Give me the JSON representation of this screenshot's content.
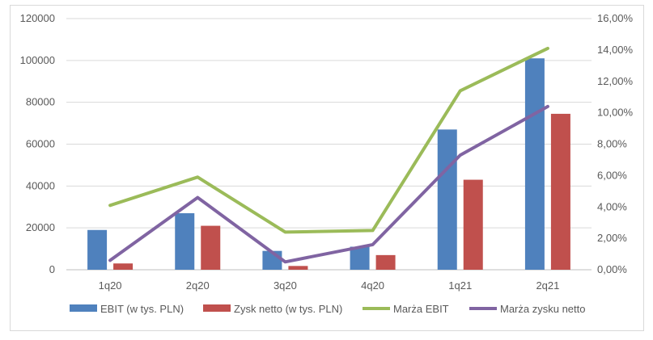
{
  "chart_data": {
    "type": "bar",
    "categories": [
      "1q20",
      "2q20",
      "3q20",
      "4q20",
      "1q21",
      "2q21"
    ],
    "series": [
      {
        "name": "EBIT (w tys. PLN)",
        "kind": "bar",
        "axis": "left",
        "color": "#4F81BD",
        "values": [
          19000,
          27000,
          9000,
          11000,
          67000,
          101000
        ]
      },
      {
        "name": "Zysk netto (w tys. PLN)",
        "kind": "bar",
        "axis": "left",
        "color": "#C0504D",
        "values": [
          3000,
          21000,
          1800,
          7000,
          43000,
          74500
        ]
      },
      {
        "name": "Marża EBIT",
        "kind": "line",
        "axis": "right",
        "color": "#9BBB59",
        "values": [
          0.041,
          0.059,
          0.024,
          0.025,
          0.114,
          0.141
        ]
      },
      {
        "name": "Marża zysku netto",
        "kind": "line",
        "axis": "right",
        "color": "#8064A2",
        "values": [
          0.006,
          0.046,
          0.005,
          0.016,
          0.073,
          0.104
        ]
      }
    ],
    "ylim_left": [
      0,
      120000
    ],
    "ylim_right": [
      0,
      0.16
    ],
    "left_ticks": [
      "0",
      "20000",
      "40000",
      "60000",
      "80000",
      "100000",
      "120000"
    ],
    "right_ticks": [
      "0,00%",
      "2,00%",
      "4,00%",
      "6,00%",
      "8,00%",
      "10,00%",
      "12,00%",
      "14,00%",
      "16,00%"
    ],
    "grid": true,
    "legend_position": "bottom"
  }
}
